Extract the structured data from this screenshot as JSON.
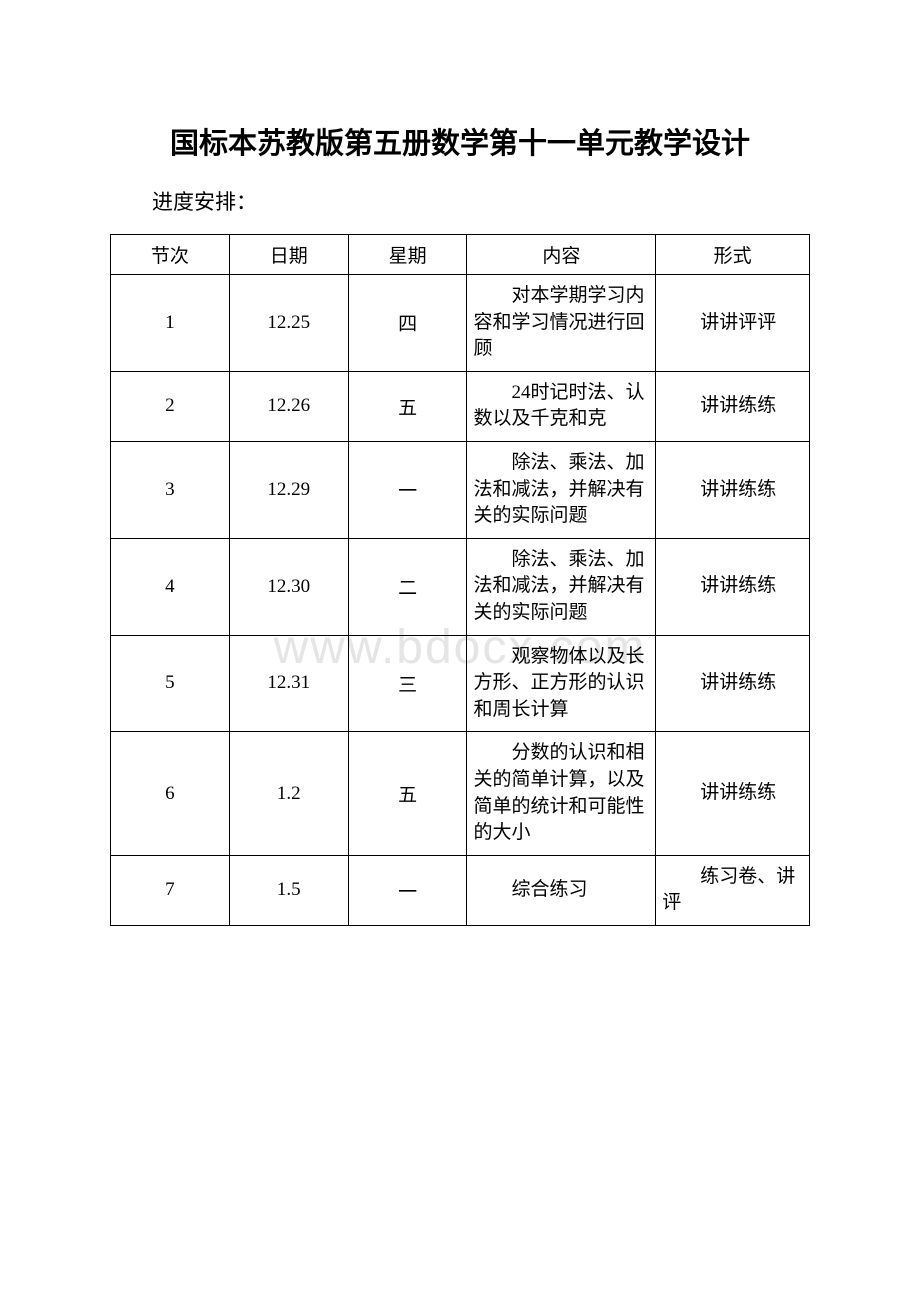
{
  "title": "国标本苏教版第五册数学第十一单元教学设计",
  "subtitle": "进度安排：",
  "watermark": "www.bdocx.com",
  "table": {
    "headers": [
      "节次",
      "日期",
      "星期",
      "内容",
      "形式"
    ],
    "rows": [
      {
        "num": "1",
        "date": "12.25",
        "weekday": "四",
        "content": "对本学期学习内容和学习情况进行回顾",
        "format": "讲讲评评"
      },
      {
        "num": "2",
        "date": "12.26",
        "weekday": "五",
        "content": "24时记时法、认数以及千克和克",
        "format": "讲讲练练"
      },
      {
        "num": "3",
        "date": "12.29",
        "weekday": "一",
        "content": "除法、乘法、加法和减法，并解决有关的实际问题",
        "format": "讲讲练练"
      },
      {
        "num": "4",
        "date": "12.30",
        "weekday": "二",
        "content": "除法、乘法、加法和减法，并解决有关的实际问题",
        "format": "讲讲练练"
      },
      {
        "num": "5",
        "date": "12.31",
        "weekday": "三",
        "content": "观察物体以及长方形、正方形的认识和周长计算",
        "format": "讲讲练练"
      },
      {
        "num": "6",
        "date": "1.2",
        "weekday": "五",
        "content": "分数的认识和相关的简单计算，以及简单的统计和可能性的大小",
        "format": "讲讲练练"
      },
      {
        "num": "7",
        "date": "1.5",
        "weekday": "一",
        "content": "综合练习",
        "format": "练习卷、讲评"
      }
    ]
  }
}
